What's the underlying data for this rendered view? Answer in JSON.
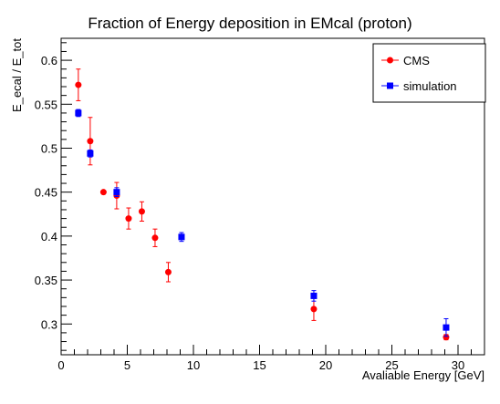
{
  "chart_data": {
    "type": "scatter",
    "title": "Fraction of Energy deposition in EMcal (proton)",
    "xlabel": "Avaliable Energy [GeV]",
    "ylabel": "E_ecal / E_tot",
    "xlim": [
      0,
      32
    ],
    "ylim": [
      0.265,
      0.625
    ],
    "x_ticks": [
      0,
      5,
      10,
      15,
      20,
      25,
      30
    ],
    "y_ticks": [
      0.3,
      0.35,
      0.4,
      0.45,
      0.5,
      0.55,
      0.6
    ],
    "x_tick_labels": [
      "0",
      "5",
      "10",
      "15",
      "20",
      "25",
      "30"
    ],
    "y_tick_labels": [
      "0.3",
      "0.35",
      "0.4",
      "0.45",
      "0.5",
      "0.55",
      "0.6"
    ],
    "grid": false,
    "legend_position": "top-right",
    "series": [
      {
        "name": "CMS",
        "color": "#ff0000",
        "marker": "circle",
        "points": [
          {
            "x": 1.3,
            "y": 0.572,
            "err": 0.018
          },
          {
            "x": 2.2,
            "y": 0.508,
            "err": 0.027
          },
          {
            "x": 3.2,
            "y": 0.45,
            "err": 0.0
          },
          {
            "x": 4.2,
            "y": 0.446,
            "err": 0.015
          },
          {
            "x": 5.1,
            "y": 0.42,
            "err": 0.012
          },
          {
            "x": 6.1,
            "y": 0.428,
            "err": 0.011
          },
          {
            "x": 7.1,
            "y": 0.398,
            "err": 0.01
          },
          {
            "x": 8.1,
            "y": 0.359,
            "err": 0.011
          },
          {
            "x": 19.1,
            "y": 0.317,
            "err": 0.013
          },
          {
            "x": 29.1,
            "y": 0.285,
            "err": 0.003
          }
        ]
      },
      {
        "name": "simulation",
        "color": "#0000ff",
        "marker": "square",
        "points": [
          {
            "x": 1.3,
            "y": 0.54,
            "err": 0.004
          },
          {
            "x": 2.2,
            "y": 0.494,
            "err": 0.004
          },
          {
            "x": 4.2,
            "y": 0.45,
            "err": 0.005
          },
          {
            "x": 9.1,
            "y": 0.399,
            "err": 0.005
          },
          {
            "x": 19.1,
            "y": 0.332,
            "err": 0.006
          },
          {
            "x": 29.1,
            "y": 0.296,
            "err": 0.01
          }
        ]
      }
    ]
  }
}
